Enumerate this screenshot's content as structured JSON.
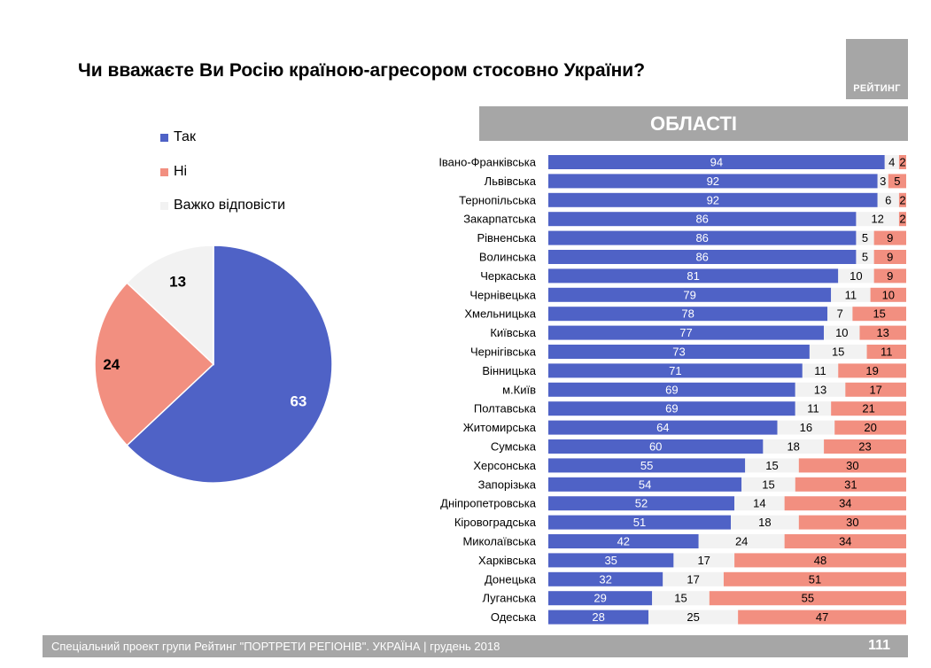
{
  "title": "Чи вважаєте Ви Росію країною-агресором стосовно України?",
  "logo_text": "РЕЙТИНГ",
  "section_header": "ОБЛАСТІ",
  "footer": {
    "text": "Спеціальний проект групи Рейтинг \"ПОРТРЕТИ РЕГІОНІВ\". УКРАЇНА | грудень 2018",
    "page": "111"
  },
  "colors": {
    "yes": "#4f62c6",
    "no": "#f28f80",
    "hard": "#f2f2f2"
  },
  "legend": [
    "Так",
    "Ні",
    "Важко відповісти"
  ],
  "chart_data": [
    {
      "type": "pie",
      "labels": [
        "Так",
        "Ні",
        "Важко відповісти"
      ],
      "values": [
        63,
        24,
        13
      ]
    },
    {
      "type": "bar",
      "stacked": true,
      "orientation": "horizontal",
      "title": "ОБЛАСТІ",
      "categories": [
        "Івано-Франківська",
        "Львівська",
        "Тернопільська",
        "Закарпатська",
        "Рівненська",
        "Волинська",
        "Черкаська",
        "Чернівецька",
        "Хмельницька",
        "Київська",
        "Чернігівська",
        "Вінницька",
        "м.Київ",
        "Полтавська",
        "Житомирська",
        "Сумська",
        "Херсонська",
        "Запорізька",
        "Дніпропетровська",
        "Кіровоградська",
        "Миколаївська",
        "Харківська",
        "Донецька",
        "Луганська",
        "Одеська"
      ],
      "series": [
        {
          "name": "Так",
          "values": [
            94,
            92,
            92,
            86,
            86,
            86,
            81,
            79,
            78,
            77,
            73,
            71,
            69,
            69,
            64,
            60,
            55,
            54,
            52,
            51,
            42,
            35,
            32,
            29,
            28
          ]
        },
        {
          "name": "Ні",
          "values": [
            2,
            5,
            2,
            2,
            9,
            9,
            9,
            10,
            15,
            13,
            11,
            19,
            17,
            21,
            20,
            23,
            30,
            31,
            34,
            30,
            34,
            48,
            51,
            55,
            47
          ]
        },
        {
          "name": "Важко відповісти",
          "values": [
            4,
            3,
            6,
            12,
            5,
            5,
            10,
            11,
            7,
            10,
            15,
            11,
            13,
            11,
            16,
            18,
            15,
            15,
            14,
            18,
            24,
            17,
            17,
            15,
            25
          ]
        }
      ]
    }
  ]
}
